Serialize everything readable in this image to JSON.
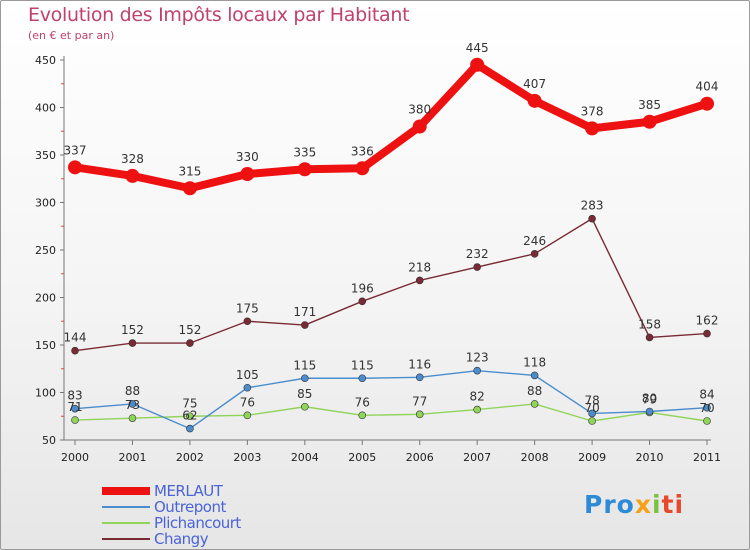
{
  "chart_data": {
    "type": "line",
    "title": "Evolution des Impôts locaux par Habitant",
    "subtitle": "(en € et par an)",
    "x": [
      "2000",
      "2001",
      "2002",
      "2003",
      "2004",
      "2005",
      "2006",
      "2007",
      "2008",
      "2009",
      "2010",
      "2011"
    ],
    "ylim": [
      50,
      450
    ],
    "yticks": [
      50,
      100,
      150,
      200,
      250,
      300,
      350,
      400,
      450
    ],
    "grid": false,
    "legend_position": "bottom-left",
    "series": [
      {
        "name": "MERLAUT",
        "color": "#ee1111",
        "values": [
          337,
          328,
          315,
          330,
          335,
          336,
          380,
          445,
          407,
          378,
          385,
          404
        ]
      },
      {
        "name": "Outrepont",
        "color": "#4a8ccc",
        "values": [
          83,
          88,
          62,
          105,
          115,
          115,
          116,
          123,
          118,
          78,
          80,
          84
        ]
      },
      {
        "name": "Plichancourt",
        "color": "#90d45a",
        "values": [
          71,
          73,
          75,
          76,
          85,
          76,
          77,
          82,
          88,
          70,
          79,
          70
        ]
      },
      {
        "name": "Changy",
        "color": "#7a2a35",
        "values": [
          144,
          152,
          152,
          175,
          171,
          196,
          218,
          232,
          246,
          283,
          158,
          162
        ]
      }
    ]
  },
  "logo": {
    "parts": [
      "Pro",
      "x",
      "i",
      "ti"
    ]
  }
}
